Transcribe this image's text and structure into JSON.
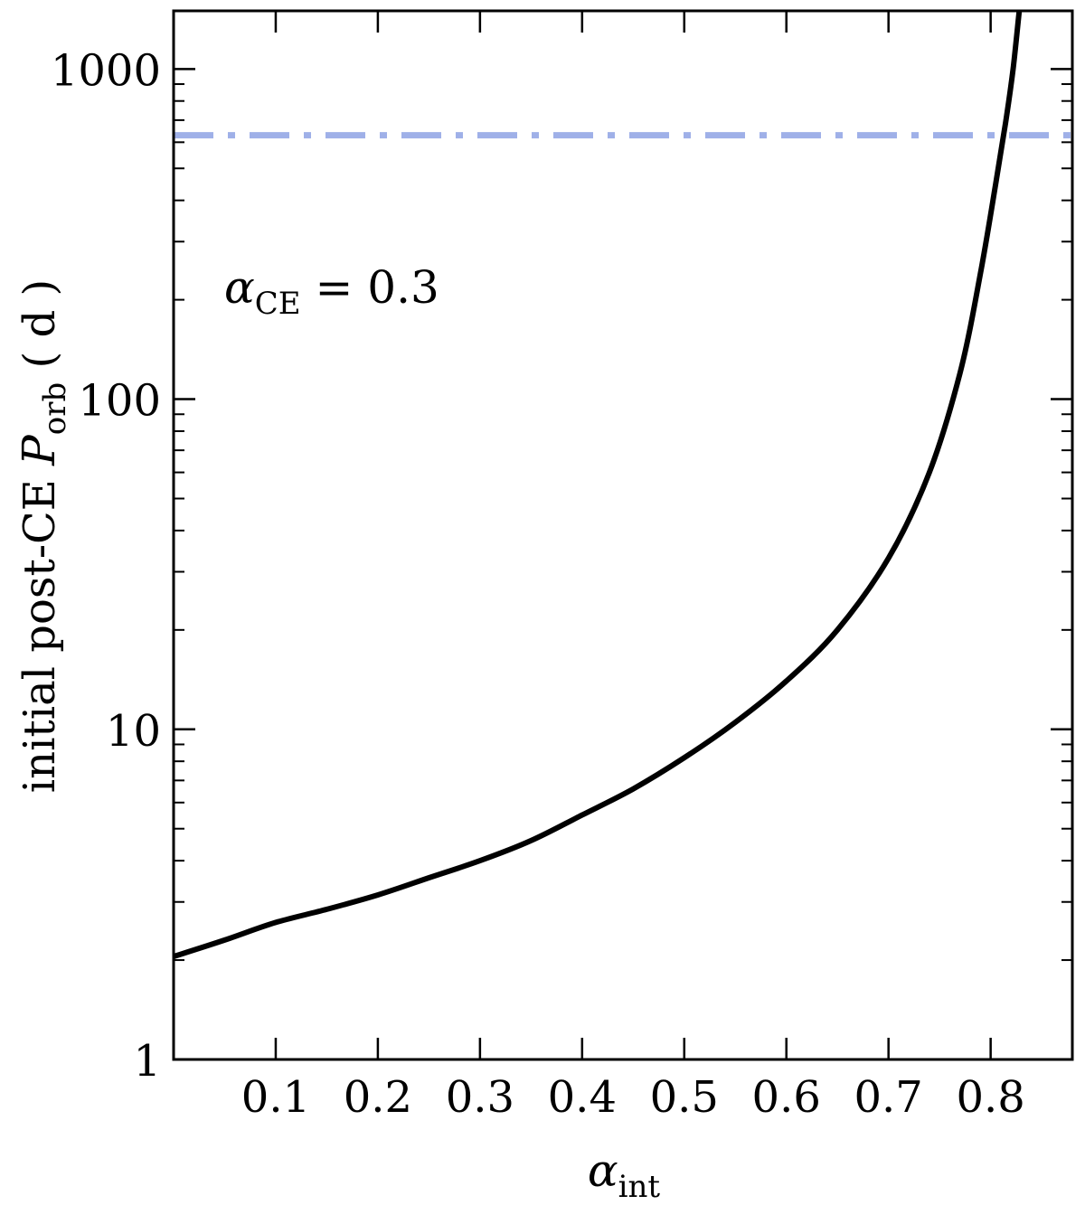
{
  "chart_data": {
    "type": "line",
    "xlabel": {
      "symbol": "α",
      "subscript": "int"
    },
    "ylabel": {
      "prefix": "initial post-CE ",
      "symbol": "P",
      "subscript": "orb",
      "unit": " ( d )"
    },
    "annotation": {
      "symbol": "α",
      "subscript": "CE",
      "text": " = 0.3"
    },
    "xlim": [
      0.0,
      0.88
    ],
    "ylim": [
      1,
      1500
    ],
    "yscale": "log",
    "x_ticks": [
      0.1,
      0.2,
      0.3,
      0.4,
      0.5,
      0.6,
      0.7,
      0.8
    ],
    "x_tick_labels": [
      "0.1",
      "0.2",
      "0.3",
      "0.4",
      "0.5",
      "0.6",
      "0.7",
      "0.8"
    ],
    "y_ticks": [
      1,
      10,
      100,
      1000
    ],
    "y_tick_labels": [
      "1",
      "10",
      "100",
      "1000"
    ],
    "grid": false,
    "series": [
      {
        "style": "solid",
        "color": "#000000",
        "x": [
          0.0,
          0.05,
          0.1,
          0.15,
          0.2,
          0.25,
          0.3,
          0.35,
          0.4,
          0.45,
          0.5,
          0.55,
          0.6,
          0.65,
          0.7,
          0.74,
          0.77,
          0.79,
          0.805,
          0.815,
          0.822,
          0.828
        ],
        "y": [
          2.05,
          2.3,
          2.6,
          2.85,
          3.15,
          3.55,
          4.0,
          4.6,
          5.5,
          6.6,
          8.2,
          10.5,
          14.0,
          20.0,
          33.0,
          60.0,
          120.0,
          240.0,
          450.0,
          700.0,
          1000.0,
          1500.0
        ]
      },
      {
        "style": "dash-dot",
        "color": "#9fb0e8",
        "x": [
          0.0,
          0.88
        ],
        "y": [
          630,
          630
        ]
      }
    ]
  }
}
